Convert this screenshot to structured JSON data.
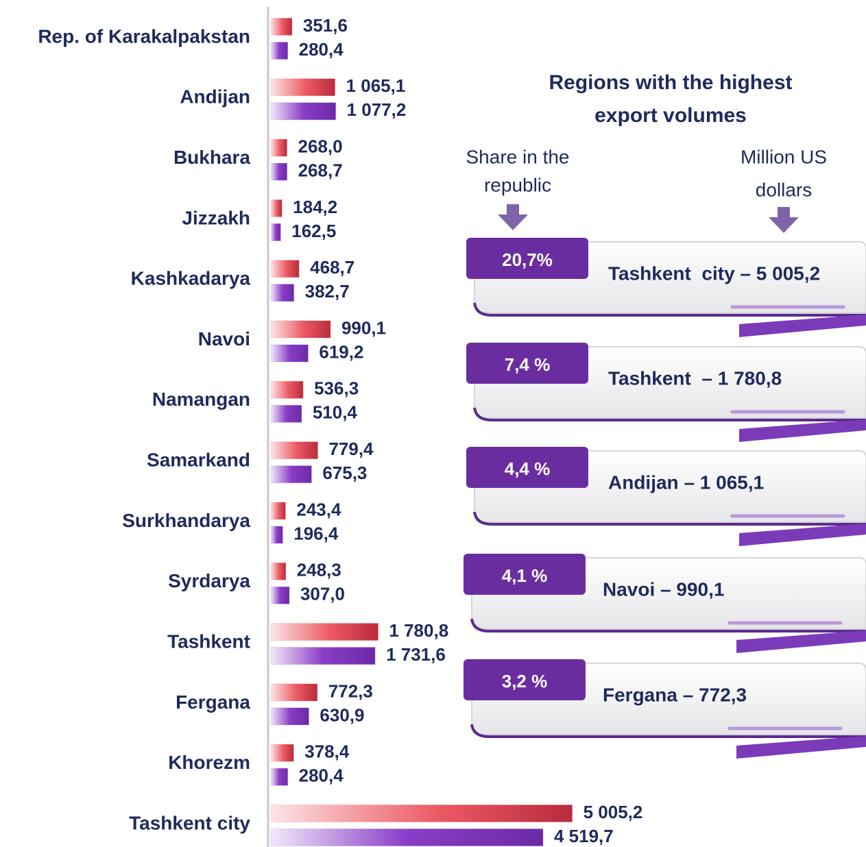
{
  "chart_data": {
    "type": "bar",
    "orientation": "horizontal",
    "categories": [
      "Rep. of Karakalpakstan",
      "Andijan",
      "Bukhara",
      "Jizzakh",
      "Kashkadarya",
      "Navoi",
      "Namangan",
      "Samarkand",
      "Surkhandarya",
      "Syrdarya",
      "Tashkent",
      "Fergana",
      "Khorezm",
      "Tashkent city"
    ],
    "series": [
      {
        "color": "#e0434f",
        "values": [
          351.6,
          1065.1,
          268.0,
          184.2,
          468.7,
          990.1,
          536.3,
          779.4,
          243.4,
          248.3,
          1780.8,
          772.3,
          378.4,
          5005.2
        ],
        "value_labels": [
          "351,6",
          "1 065,1",
          "268,0",
          "184,2",
          "468,7",
          "990,1",
          "536,3",
          "779,4",
          "243,4",
          "248,3",
          "1 780,8",
          "772,3",
          "378,4",
          "5 005,2"
        ]
      },
      {
        "color": "#7b2fb5",
        "values": [
          280.4,
          1077.2,
          268.7,
          162.5,
          382.7,
          619.2,
          510.4,
          675.3,
          196.4,
          307.0,
          1731.6,
          630.9,
          280.4,
          4519.7
        ],
        "value_labels": [
          "280,4",
          "1 077,2",
          "268,7",
          "162,5",
          "382,7",
          "619,2",
          "510,4",
          "675,3",
          "196,4",
          "307,0",
          "1 731,6",
          "630,9",
          "280,4",
          "4 519,7"
        ]
      }
    ],
    "xlim": [
      0,
      6000
    ],
    "panel": {
      "title": [
        "Regions with the highest",
        "export volumes"
      ],
      "share_header": [
        "Share in the",
        "republic"
      ],
      "value_header": [
        "Million US",
        "dollars"
      ],
      "cards": [
        {
          "share": "20,7%",
          "label": "Tashkent  city – 5 005,2"
        },
        {
          "share": "7,4 %",
          "label": "Tashkent  – 1 780,8"
        },
        {
          "share": "4,4 %",
          "label": "Andijan – 1 065,1"
        },
        {
          "share": "4,1 %",
          "label": "Navoi – 990,1"
        },
        {
          "share": "3,2 %",
          "label": "Fergana – 772,3"
        }
      ]
    }
  }
}
